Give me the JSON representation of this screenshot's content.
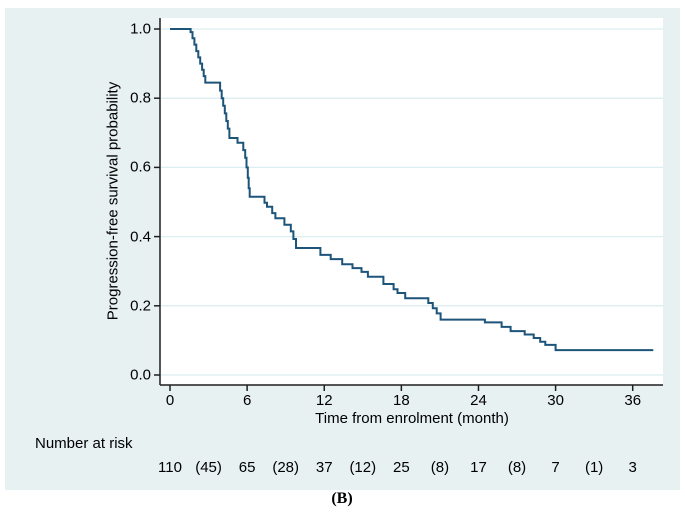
{
  "figure": {
    "panel_bg": "#e7f1f2",
    "plot_bg": "#ffffff",
    "grid_color": "#dceef1",
    "axis_color": "#1f1f1f",
    "curve_color": "#1c547a"
  },
  "chart_data": {
    "type": "line",
    "subtype": "kaplan-meier-step",
    "title": "",
    "xlabel": "Time from enrolment (month)",
    "ylabel": "Progression-free survival probability",
    "xlim": [
      0,
      38
    ],
    "ylim": [
      0.0,
      1.0
    ],
    "x_ticks": [
      0,
      6,
      12,
      18,
      24,
      30,
      36
    ],
    "y_ticks": [
      "0.0",
      "0.2",
      "0.4",
      "0.6",
      "0.8",
      "1.0"
    ],
    "grid": "horizontal",
    "legend": "none",
    "series": [
      {
        "name": "Progression-free survival",
        "steps": [
          [
            0,
            1.0
          ],
          [
            1.6,
            0.991
          ],
          [
            1.75,
            0.973
          ],
          [
            1.9,
            0.955
          ],
          [
            2.05,
            0.936
          ],
          [
            2.2,
            0.918
          ],
          [
            2.35,
            0.9
          ],
          [
            2.5,
            0.882
          ],
          [
            2.62,
            0.864
          ],
          [
            2.75,
            0.845
          ],
          [
            3.9,
            0.822
          ],
          [
            4.02,
            0.8
          ],
          [
            4.14,
            0.778
          ],
          [
            4.26,
            0.756
          ],
          [
            4.38,
            0.734
          ],
          [
            4.5,
            0.712
          ],
          [
            4.62,
            0.685
          ],
          [
            5.25,
            0.671
          ],
          [
            5.7,
            0.65
          ],
          [
            5.85,
            0.628
          ],
          [
            5.95,
            0.6
          ],
          [
            6.05,
            0.57
          ],
          [
            6.12,
            0.54
          ],
          [
            6.2,
            0.515
          ],
          [
            7.35,
            0.498
          ],
          [
            7.55,
            0.486
          ],
          [
            7.95,
            0.468
          ],
          [
            8.2,
            0.453
          ],
          [
            8.9,
            0.434
          ],
          [
            9.4,
            0.415
          ],
          [
            9.6,
            0.393
          ],
          [
            9.8,
            0.367
          ],
          [
            11.7,
            0.347
          ],
          [
            12.5,
            0.335
          ],
          [
            13.4,
            0.32
          ],
          [
            14.2,
            0.309
          ],
          [
            14.9,
            0.298
          ],
          [
            15.4,
            0.284
          ],
          [
            16.6,
            0.263
          ],
          [
            17.4,
            0.248
          ],
          [
            17.7,
            0.237
          ],
          [
            18.3,
            0.222
          ],
          [
            20.1,
            0.208
          ],
          [
            20.45,
            0.193
          ],
          [
            20.75,
            0.178
          ],
          [
            21.05,
            0.16
          ],
          [
            24.5,
            0.152
          ],
          [
            25.8,
            0.139
          ],
          [
            26.5,
            0.127
          ],
          [
            27.6,
            0.117
          ],
          [
            28.3,
            0.107
          ],
          [
            28.8,
            0.096
          ],
          [
            29.2,
            0.087
          ],
          [
            30.0,
            0.072
          ],
          [
            37.6,
            0.072
          ]
        ]
      }
    ],
    "number_at_risk": {
      "label": "Number at risk",
      "entries": [
        {
          "t": 0,
          "value": "110"
        },
        {
          "t": 3,
          "value": "(45)"
        },
        {
          "t": 6,
          "value": "65"
        },
        {
          "t": 9,
          "value": "(28)"
        },
        {
          "t": 12,
          "value": "37"
        },
        {
          "t": 15,
          "value": "(12)"
        },
        {
          "t": 18,
          "value": "25"
        },
        {
          "t": 21,
          "value": "(8)"
        },
        {
          "t": 24,
          "value": "17"
        },
        {
          "t": 27,
          "value": "(8)"
        },
        {
          "t": 30,
          "value": "7"
        },
        {
          "t": 33,
          "value": "(1)"
        },
        {
          "t": 36,
          "value": "3"
        }
      ]
    },
    "caption": "(B)"
  }
}
